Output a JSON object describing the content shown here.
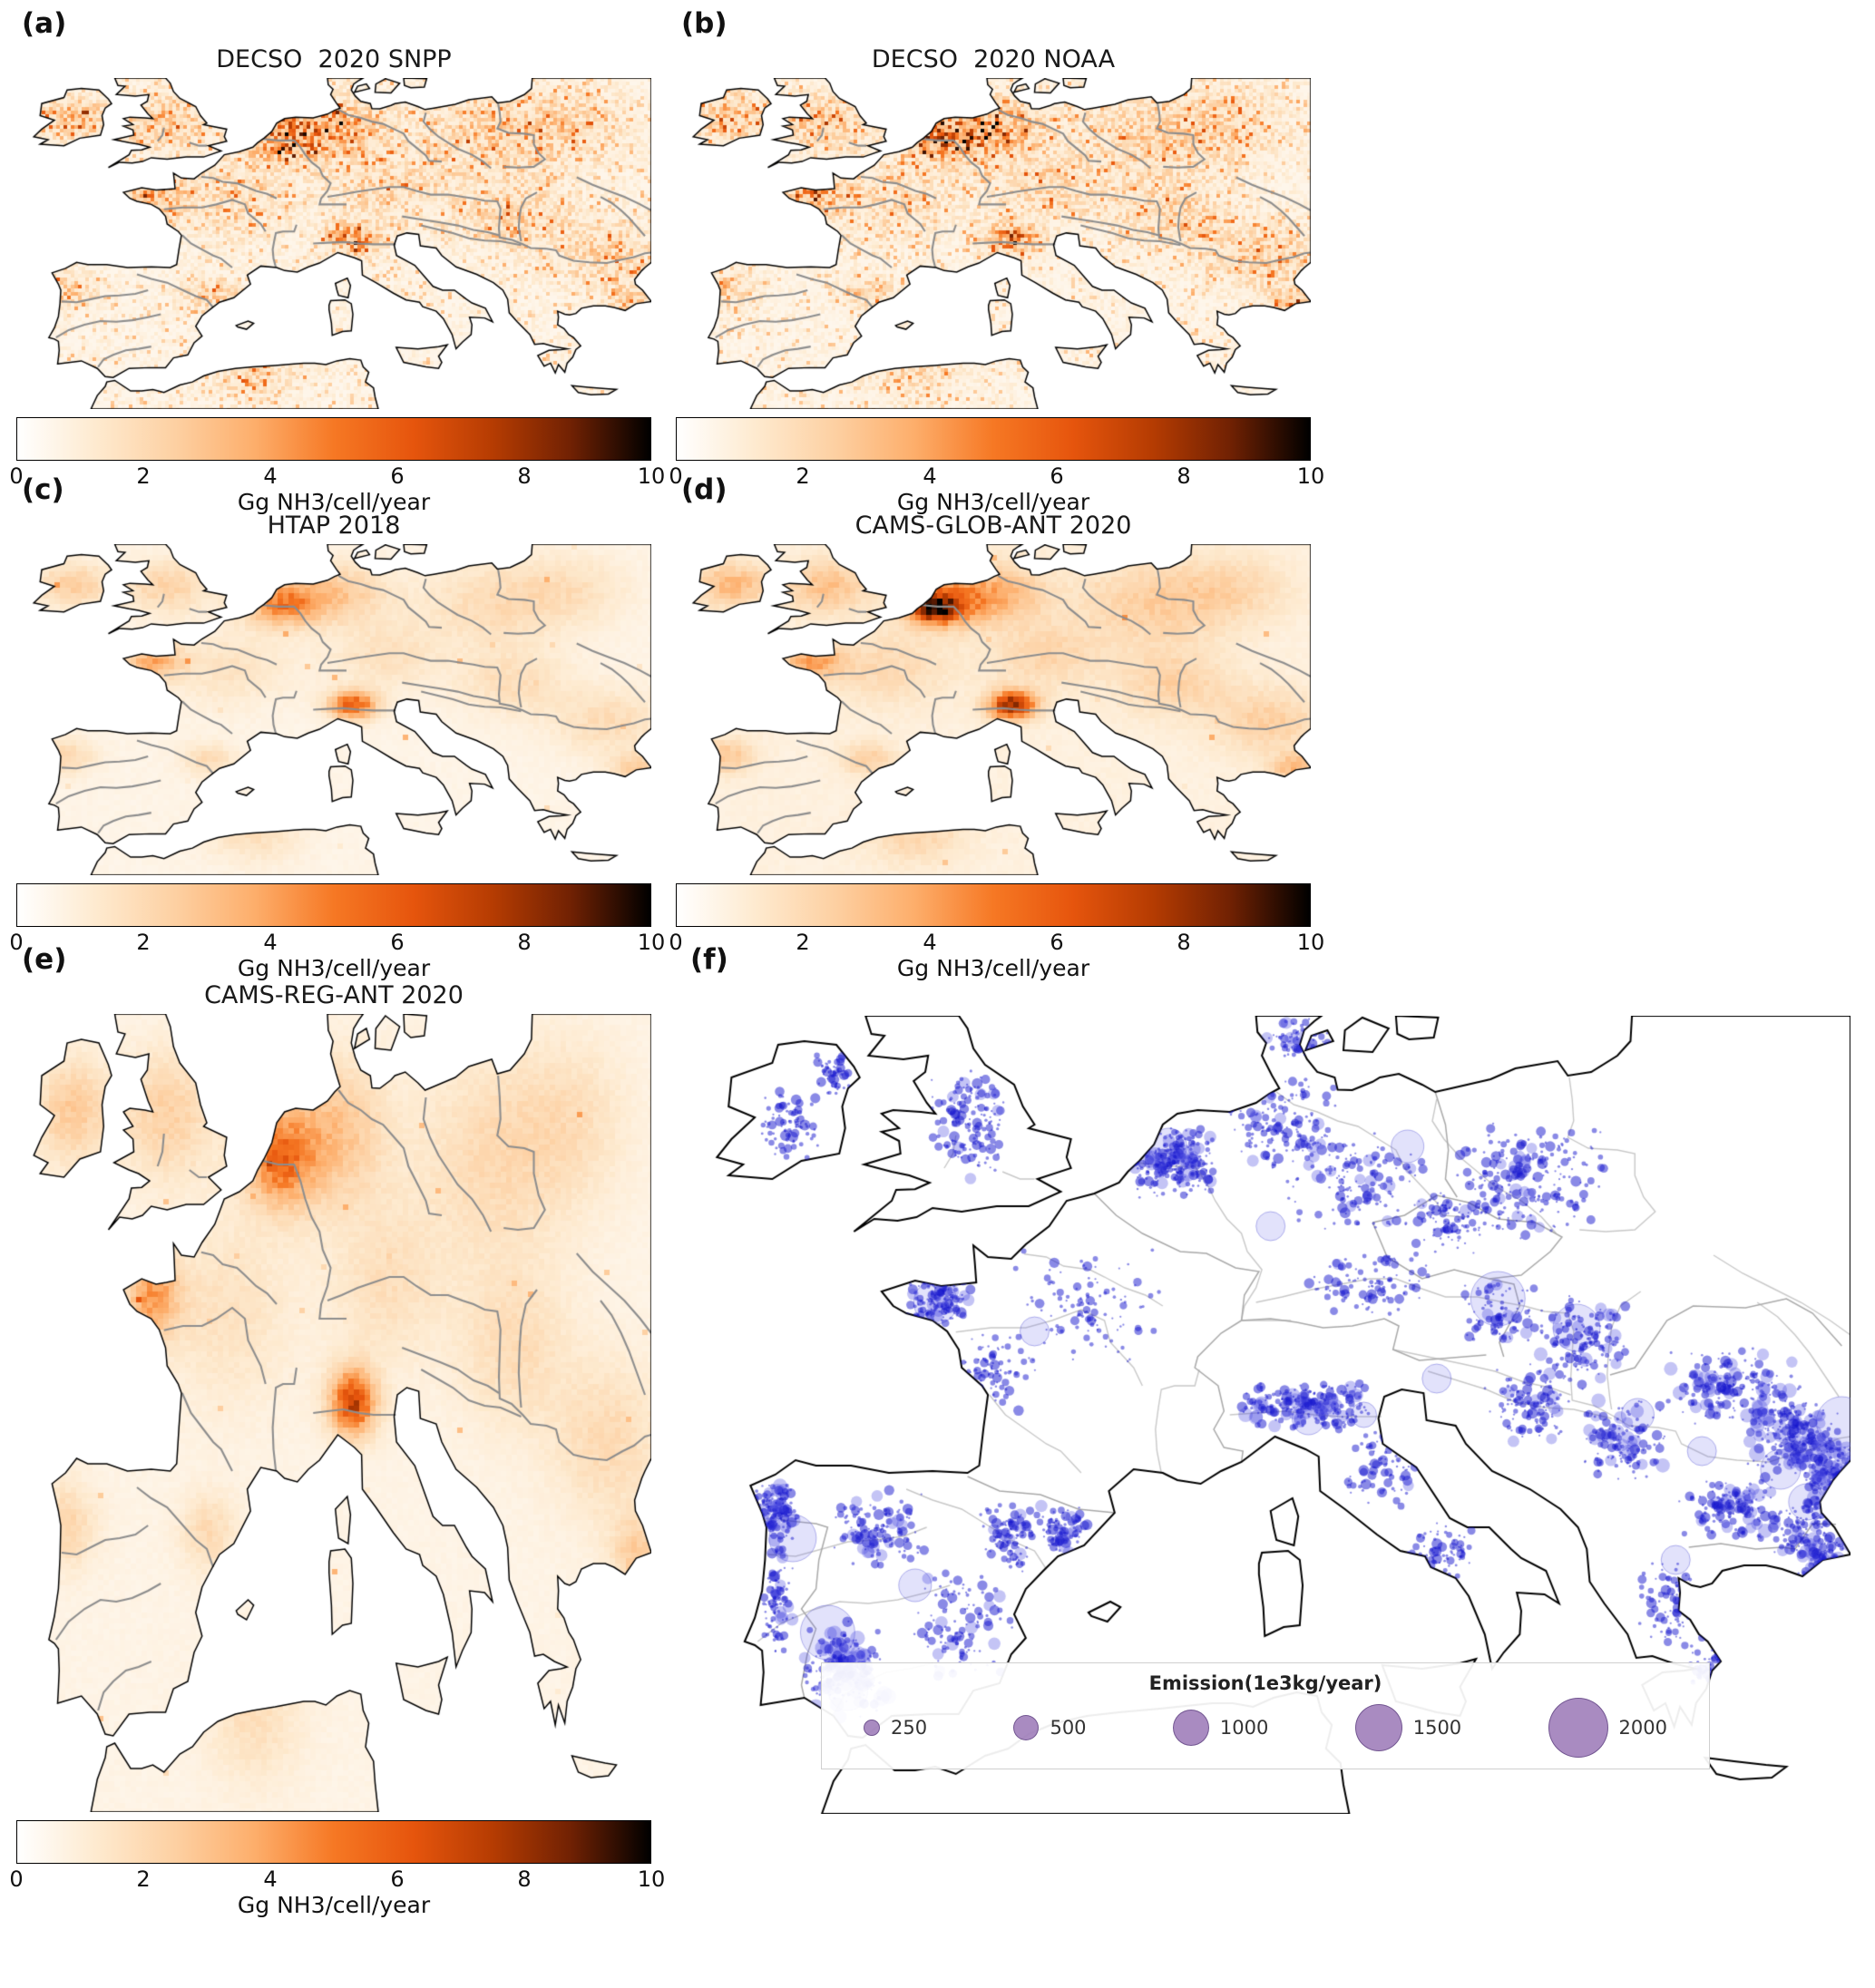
{
  "panels": [
    {
      "id": "a",
      "label": "(a)",
      "title": "DECSO  2020 SNPP"
    },
    {
      "id": "b",
      "label": "(b)",
      "title": "DECSO  2020 NOAA"
    },
    {
      "id": "c",
      "label": "(c)",
      "title": "HTAP 2018"
    },
    {
      "id": "d",
      "label": "(d)",
      "title": "CAMS-GLOB-ANT 2020"
    },
    {
      "id": "e",
      "label": "(e)",
      "title": "CAMS-REG-ANT 2020"
    },
    {
      "id": "f",
      "label": "(f)",
      "title": ""
    }
  ],
  "colorbar": {
    "label": "Gg NH3/cell/year",
    "min": 0,
    "max": 10,
    "ticks": [
      "0",
      "2",
      "4",
      "6",
      "8",
      "10"
    ],
    "colors": [
      "#ffffff",
      "#feeacf",
      "#fdd0a2",
      "#fdae6b",
      "#f67824",
      "#e6550d",
      "#b63c02",
      "#702103",
      "#000000"
    ]
  },
  "legend": {
    "title": "Emission(1e3kg/year)",
    "sizes": [
      "250",
      "500",
      "1000",
      "1500",
      "2000"
    ],
    "bubble_color": "#9d7bb8",
    "point_color": "#2222cc"
  },
  "chart_data": [
    {
      "type": "heatmap",
      "panel": "(a)",
      "title": "DECSO  2020 SNPP",
      "region": "Europe",
      "units": "Gg NH3/cell/year",
      "value_range": [
        0,
        10
      ],
      "colorbar_ticks": [
        0,
        2,
        4,
        6,
        8,
        10
      ],
      "colormap": "white-orange-red-black"
    },
    {
      "type": "heatmap",
      "panel": "(b)",
      "title": "DECSO  2020 NOAA",
      "region": "Europe",
      "units": "Gg NH3/cell/year",
      "value_range": [
        0,
        10
      ],
      "colorbar_ticks": [
        0,
        2,
        4,
        6,
        8,
        10
      ],
      "colormap": "white-orange-red-black"
    },
    {
      "type": "heatmap",
      "panel": "(c)",
      "title": "HTAP 2018",
      "region": "Europe",
      "units": "Gg NH3/cell/year",
      "value_range": [
        0,
        10
      ],
      "colorbar_ticks": [
        0,
        2,
        4,
        6,
        8,
        10
      ],
      "colormap": "white-orange-red-black"
    },
    {
      "type": "heatmap",
      "panel": "(d)",
      "title": "CAMS-GLOB-ANT 2020",
      "region": "Europe",
      "units": "Gg NH3/cell/year",
      "value_range": [
        0,
        10
      ],
      "colorbar_ticks": [
        0,
        2,
        4,
        6,
        8,
        10
      ],
      "colormap": "white-orange-red-black"
    },
    {
      "type": "heatmap",
      "panel": "(e)",
      "title": "CAMS-REG-ANT 2020",
      "region": "Europe",
      "units": "Gg NH3/cell/year",
      "value_range": [
        0,
        10
      ],
      "colorbar_ticks": [
        0,
        2,
        4,
        6,
        8,
        10
      ],
      "colormap": "white-orange-red-black"
    },
    {
      "type": "scatter",
      "panel": "(f)",
      "title": "",
      "region": "Europe",
      "marker": "circle",
      "marker_color": "blue",
      "legend_title": "Emission(1e3kg/year)",
      "legend_sizes": [
        250,
        500,
        1000,
        1500,
        2000
      ]
    }
  ]
}
